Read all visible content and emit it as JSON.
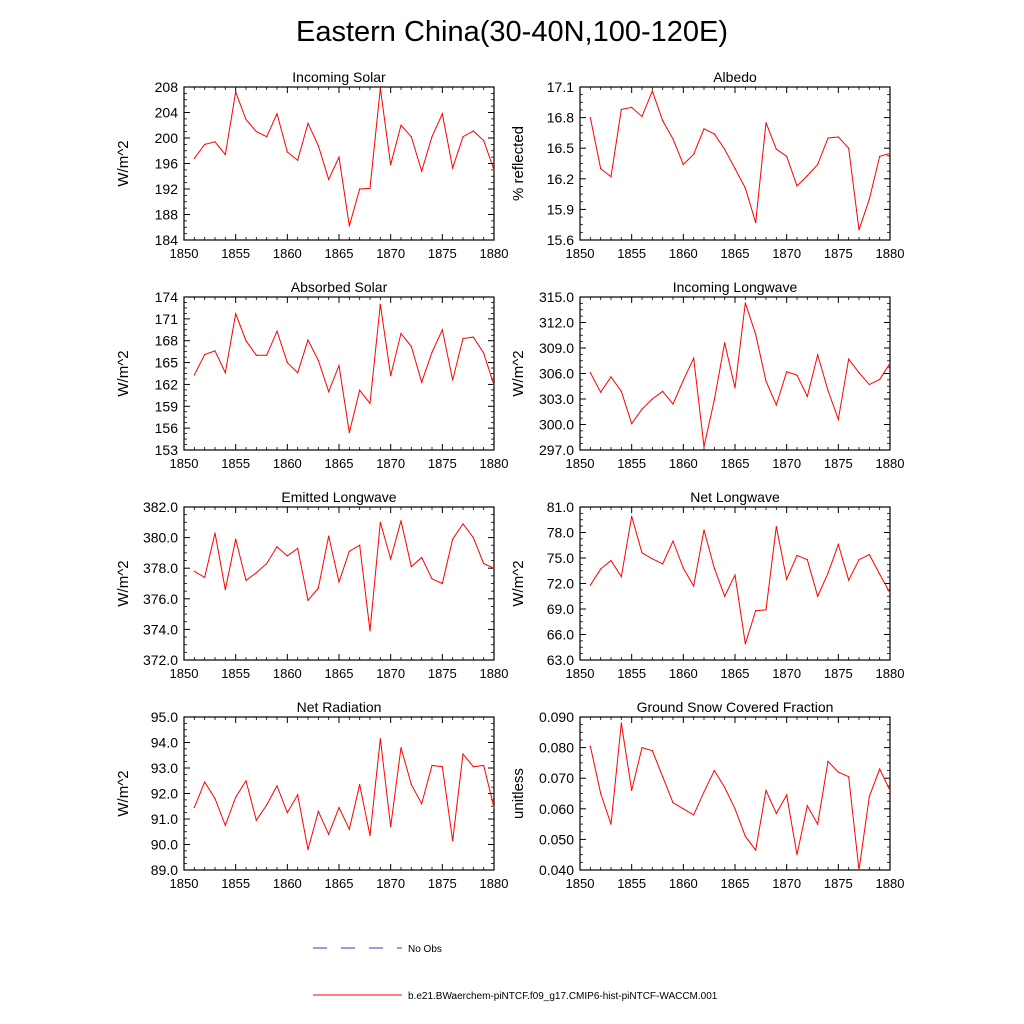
{
  "figure": {
    "title": "Eastern China(30-40N,100-120E)",
    "legend": {
      "obs_label": "No Obs",
      "obs_color": "#3333cc",
      "model_label": "b.e21.BWaerchem-piNTCF.f09_g17.CMIP6-hist-piNTCF-WACCM.001",
      "model_color": "#ff0000"
    }
  },
  "chart_data": [
    {
      "type": "line",
      "title": "Incoming Solar",
      "ylabel": "W/m^2",
      "xlim": [
        1850,
        1880
      ],
      "ylim": [
        184,
        208
      ],
      "yticks": [
        "184",
        "188",
        "192",
        "196",
        "200",
        "204",
        "208"
      ],
      "xticks": [
        "1850",
        "1855",
        "1860",
        "1865",
        "1870",
        "1875",
        "1880"
      ],
      "x": [
        1851,
        1852,
        1853,
        1854,
        1855,
        1856,
        1857,
        1858,
        1859,
        1860,
        1861,
        1862,
        1863,
        1864,
        1865,
        1866,
        1867,
        1868,
        1869,
        1870,
        1871,
        1872,
        1873,
        1874,
        1875,
        1876,
        1877,
        1878,
        1879,
        1880
      ],
      "series": [
        {
          "color": "#ff0000",
          "values": [
            196.8,
            199.0,
            199.4,
            197.4,
            207.2,
            202.9,
            201.0,
            200.2,
            203.8,
            197.8,
            196.5,
            202.3,
            198.8,
            193.5,
            197.0,
            186.2,
            192.0,
            192.1,
            207.8,
            195.8,
            202.0,
            200.2,
            194.8,
            200.2,
            203.8,
            195.3,
            200.2,
            201.1,
            199.6,
            195.0
          ]
        }
      ]
    },
    {
      "type": "line",
      "title": "Albedo",
      "ylabel": "% reflected",
      "xlim": [
        1850,
        1880
      ],
      "ylim": [
        15.6,
        17.1
      ],
      "yticks": [
        "15.6",
        "15.9",
        "16.2",
        "16.5",
        "16.8",
        "17.1"
      ],
      "xticks": [
        "1850",
        "1855",
        "1860",
        "1865",
        "1870",
        "1875",
        "1880"
      ],
      "x": [
        1851,
        1852,
        1853,
        1854,
        1855,
        1856,
        1857,
        1858,
        1859,
        1860,
        1861,
        1862,
        1863,
        1864,
        1865,
        1866,
        1867,
        1868,
        1869,
        1870,
        1871,
        1872,
        1873,
        1874,
        1875,
        1876,
        1877,
        1878,
        1879,
        1880
      ],
      "series": [
        {
          "color": "#ff0000",
          "values": [
            16.8,
            16.3,
            16.22,
            16.88,
            16.9,
            16.81,
            17.06,
            16.77,
            16.59,
            16.34,
            16.44,
            16.69,
            16.64,
            16.49,
            16.3,
            16.11,
            15.77,
            16.75,
            16.49,
            16.42,
            16.13,
            16.23,
            16.34,
            16.6,
            16.61,
            16.5,
            15.7,
            16.0,
            16.42,
            16.45
          ]
        }
      ]
    },
    {
      "type": "line",
      "title": "Absorbed Solar",
      "ylabel": "W/m^2",
      "xlim": [
        1850,
        1880
      ],
      "ylim": [
        153,
        174
      ],
      "yticks": [
        "153",
        "156",
        "159",
        "162",
        "165",
        "168",
        "171",
        "174"
      ],
      "xticks": [
        "1850",
        "1855",
        "1860",
        "1865",
        "1870",
        "1875",
        "1880"
      ],
      "x": [
        1851,
        1852,
        1853,
        1854,
        1855,
        1856,
        1857,
        1858,
        1859,
        1860,
        1861,
        1862,
        1863,
        1864,
        1865,
        1866,
        1867,
        1868,
        1869,
        1870,
        1871,
        1872,
        1873,
        1874,
        1875,
        1876,
        1877,
        1878,
        1879,
        1880
      ],
      "series": [
        {
          "color": "#ff0000",
          "values": [
            163.3,
            166.1,
            166.6,
            163.6,
            171.7,
            168.0,
            166.0,
            166.0,
            169.3,
            165.0,
            163.6,
            168.1,
            165.3,
            161.0,
            164.6,
            155.4,
            161.2,
            159.4,
            173.0,
            163.2,
            169.0,
            167.2,
            162.3,
            166.4,
            169.5,
            162.6,
            168.3,
            168.5,
            166.3,
            161.9
          ]
        }
      ]
    },
    {
      "type": "line",
      "title": "Incoming Longwave",
      "ylabel": "W/m^2",
      "xlim": [
        1850,
        1880
      ],
      "ylim": [
        297.0,
        315.0
      ],
      "yticks": [
        "297.0",
        "300.0",
        "303.0",
        "306.0",
        "309.0",
        "312.0",
        "315.0"
      ],
      "xticks": [
        "1850",
        "1855",
        "1860",
        "1865",
        "1870",
        "1875",
        "1880"
      ],
      "x": [
        1851,
        1852,
        1853,
        1854,
        1855,
        1856,
        1857,
        1858,
        1859,
        1860,
        1861,
        1862,
        1863,
        1864,
        1865,
        1866,
        1867,
        1868,
        1869,
        1870,
        1871,
        1872,
        1873,
        1874,
        1875,
        1876,
        1877,
        1878,
        1879,
        1880
      ],
      "series": [
        {
          "color": "#ff0000",
          "values": [
            306.1,
            303.8,
            305.6,
            303.9,
            300.1,
            301.8,
            303.0,
            303.9,
            302.4,
            305.2,
            307.8,
            297.4,
            302.9,
            309.6,
            304.3,
            314.3,
            310.6,
            305.1,
            302.3,
            306.2,
            305.8,
            303.3,
            308.2,
            304.0,
            300.6,
            307.7,
            306.1,
            304.7,
            305.3,
            307.2
          ]
        }
      ]
    },
    {
      "type": "line",
      "title": "Emitted Longwave",
      "ylabel": "W/m^2",
      "xlim": [
        1850,
        1880
      ],
      "ylim": [
        372.0,
        382.0
      ],
      "yticks": [
        "372.0",
        "374.0",
        "376.0",
        "378.0",
        "380.0",
        "382.0"
      ],
      "xticks": [
        "1850",
        "1855",
        "1860",
        "1865",
        "1870",
        "1875",
        "1880"
      ],
      "x": [
        1851,
        1852,
        1853,
        1854,
        1855,
        1856,
        1857,
        1858,
        1859,
        1860,
        1861,
        1862,
        1863,
        1864,
        1865,
        1866,
        1867,
        1868,
        1869,
        1870,
        1871,
        1872,
        1873,
        1874,
        1875,
        1876,
        1877,
        1878,
        1879,
        1880
      ],
      "series": [
        {
          "color": "#ff0000",
          "values": [
            377.8,
            377.4,
            380.3,
            376.6,
            379.9,
            377.2,
            377.7,
            378.3,
            379.4,
            378.8,
            379.3,
            375.9,
            376.7,
            380.1,
            377.1,
            379.1,
            379.5,
            373.9,
            381.0,
            378.6,
            381.1,
            378.1,
            378.7,
            377.3,
            377.0,
            379.9,
            380.9,
            380.0,
            378.3,
            378.0
          ]
        }
      ]
    },
    {
      "type": "line",
      "title": "Net Longwave",
      "ylabel": "W/m^2",
      "xlim": [
        1850,
        1880
      ],
      "ylim": [
        63.0,
        81.0
      ],
      "yticks": [
        "63.0",
        "66.0",
        "69.0",
        "72.0",
        "75.0",
        "78.0",
        "81.0"
      ],
      "xticks": [
        "1850",
        "1855",
        "1860",
        "1865",
        "1870",
        "1875",
        "1880"
      ],
      "x": [
        1851,
        1852,
        1853,
        1854,
        1855,
        1856,
        1857,
        1858,
        1859,
        1860,
        1861,
        1862,
        1863,
        1864,
        1865,
        1866,
        1867,
        1868,
        1869,
        1870,
        1871,
        1872,
        1873,
        1874,
        1875,
        1876,
        1877,
        1878,
        1879,
        1880
      ],
      "series": [
        {
          "color": "#ff0000",
          "values": [
            71.8,
            73.7,
            74.7,
            72.8,
            79.9,
            75.6,
            74.9,
            74.3,
            77.0,
            73.8,
            71.7,
            78.3,
            73.8,
            70.5,
            73.0,
            64.9,
            68.8,
            68.9,
            78.7,
            72.5,
            75.3,
            74.8,
            70.5,
            73.2,
            76.6,
            72.4,
            74.8,
            75.4,
            73.1,
            70.9
          ]
        }
      ]
    },
    {
      "type": "line",
      "title": "Net Radiation",
      "ylabel": "W/m^2",
      "xlim": [
        1850,
        1880
      ],
      "ylim": [
        89.0,
        95.0
      ],
      "yticks": [
        "89.0",
        "90.0",
        "91.0",
        "92.0",
        "93.0",
        "94.0",
        "95.0"
      ],
      "xticks": [
        "1850",
        "1855",
        "1860",
        "1865",
        "1870",
        "1875",
        "1880"
      ],
      "x": [
        1851,
        1852,
        1853,
        1854,
        1855,
        1856,
        1857,
        1858,
        1859,
        1860,
        1861,
        1862,
        1863,
        1864,
        1865,
        1866,
        1867,
        1868,
        1869,
        1870,
        1871,
        1872,
        1873,
        1874,
        1875,
        1876,
        1877,
        1878,
        1879,
        1880
      ],
      "series": [
        {
          "color": "#ff0000",
          "values": [
            91.45,
            92.45,
            91.8,
            90.75,
            91.85,
            92.5,
            90.95,
            91.55,
            92.3,
            91.25,
            91.95,
            89.8,
            91.3,
            90.4,
            91.45,
            90.6,
            92.35,
            90.35,
            94.15,
            90.7,
            93.8,
            92.35,
            91.6,
            93.1,
            93.05,
            90.15,
            93.55,
            93.05,
            93.1,
            91.45
          ]
        }
      ]
    },
    {
      "type": "line",
      "title": "Ground Snow Covered Fraction",
      "ylabel": "unitless",
      "xlim": [
        1850,
        1880
      ],
      "ylim": [
        0.04,
        0.09
      ],
      "yticks": [
        "0.040",
        "0.050",
        "0.060",
        "0.070",
        "0.080",
        "0.090"
      ],
      "xticks": [
        "1850",
        "1855",
        "1860",
        "1865",
        "1870",
        "1875",
        "1880"
      ],
      "x": [
        1851,
        1852,
        1853,
        1854,
        1855,
        1856,
        1857,
        1858,
        1859,
        1860,
        1861,
        1862,
        1863,
        1864,
        1865,
        1866,
        1867,
        1868,
        1869,
        1870,
        1871,
        1872,
        1873,
        1874,
        1875,
        1876,
        1877,
        1878,
        1879,
        1880
      ],
      "series": [
        {
          "color": "#ff0000",
          "values": [
            0.0805,
            0.065,
            0.055,
            0.088,
            0.066,
            0.08,
            0.079,
            0.0705,
            0.062,
            0.06,
            0.058,
            0.0655,
            0.0725,
            0.067,
            0.06,
            0.051,
            0.0465,
            0.066,
            0.0585,
            0.0645,
            0.045,
            0.061,
            0.055,
            0.0755,
            0.072,
            0.0705,
            0.04,
            0.064,
            0.073,
            0.066
          ]
        }
      ]
    }
  ]
}
